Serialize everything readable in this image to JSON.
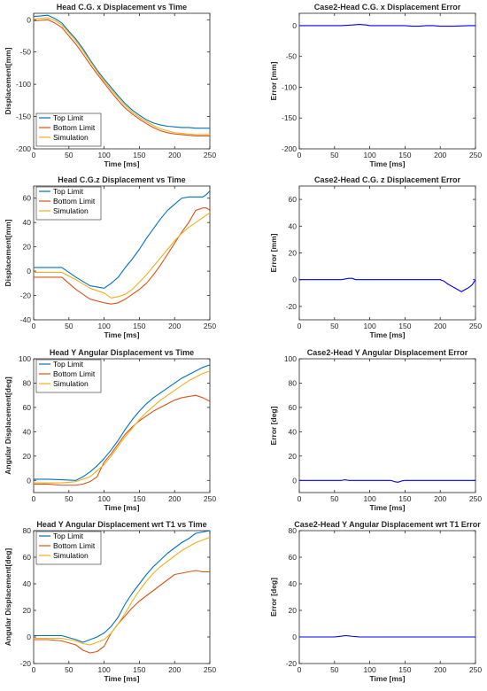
{
  "colors": {
    "top": "#0072BD",
    "bottom": "#D95319",
    "sim": "#EDB120",
    "error": "#0000FF"
  },
  "chart_data": [
    {
      "type": "line",
      "title": "Head C.G. x Displacement vs Time",
      "xlabel": "Time [ms]",
      "ylabel": "Displacement[mm]",
      "xlim": [
        0,
        250
      ],
      "ylim": [
        -200,
        10
      ],
      "xticks": [
        0,
        50,
        100,
        150,
        200,
        250
      ],
      "yticks": [
        -200,
        -150,
        -100,
        -50,
        0
      ],
      "legend": "bottom-left",
      "grid": false,
      "series": [
        {
          "name": "Top Limit",
          "color_key": "top",
          "x": [
            0,
            10,
            20,
            30,
            40,
            50,
            60,
            70,
            80,
            90,
            100,
            110,
            120,
            130,
            140,
            150,
            160,
            170,
            180,
            190,
            200,
            210,
            220,
            230,
            240,
            250
          ],
          "y": [
            5,
            6,
            7,
            2,
            -5,
            -18,
            -30,
            -45,
            -62,
            -78,
            -92,
            -105,
            -118,
            -130,
            -140,
            -148,
            -155,
            -160,
            -163,
            -165,
            -166,
            -167,
            -167,
            -168,
            -168,
            -168
          ]
        },
        {
          "name": "Bottom Limit",
          "color_key": "bottom",
          "x": [
            0,
            10,
            20,
            30,
            40,
            50,
            60,
            70,
            80,
            90,
            100,
            110,
            120,
            130,
            140,
            150,
            160,
            170,
            180,
            190,
            200,
            210,
            220,
            230,
            240,
            250
          ],
          "y": [
            -2,
            -1,
            0,
            -5,
            -12,
            -25,
            -38,
            -53,
            -69,
            -84,
            -98,
            -112,
            -125,
            -137,
            -146,
            -154,
            -161,
            -167,
            -172,
            -175,
            -177,
            -178,
            -179,
            -180,
            -180,
            -180
          ]
        },
        {
          "name": "Simulation",
          "color_key": "sim",
          "x": [
            0,
            10,
            20,
            30,
            40,
            50,
            60,
            70,
            80,
            90,
            100,
            110,
            120,
            130,
            140,
            150,
            160,
            170,
            180,
            190,
            200,
            210,
            220,
            230,
            240,
            250
          ],
          "y": [
            1,
            2,
            3,
            -1,
            -8,
            -20,
            -33,
            -48,
            -64,
            -80,
            -95,
            -108,
            -121,
            -133,
            -143,
            -151,
            -158,
            -164,
            -169,
            -172,
            -175,
            -176,
            -177,
            -178,
            -178,
            -178
          ]
        }
      ]
    },
    {
      "type": "line",
      "title": "Case2-Head C.G. x Displacement Error",
      "xlabel": "Time [ms]",
      "ylabel": "Error [mm]",
      "xlim": [
        0,
        250
      ],
      "ylim": [
        -200,
        20
      ],
      "xticks": [
        0,
        50,
        100,
        150,
        200,
        250
      ],
      "yticks": [
        -200,
        -150,
        -100,
        -50,
        0
      ],
      "legend": "none",
      "grid": false,
      "series": [
        {
          "color_key": "error",
          "x": [
            0,
            60,
            75,
            85,
            95,
            100,
            150,
            160,
            170,
            180,
            190,
            200,
            210,
            220,
            240,
            250
          ],
          "y": [
            0,
            0,
            1,
            2,
            1,
            0,
            0,
            -1,
            -1,
            0,
            0,
            -1,
            -1,
            -1,
            0,
            0
          ]
        }
      ]
    },
    {
      "type": "line",
      "title": "Head C.G.z Displacement vs Time",
      "xlabel": "Time [ms]",
      "ylabel": "Displacement[mm]",
      "xlim": [
        0,
        250
      ],
      "ylim": [
        -40,
        70
      ],
      "xticks": [
        0,
        50,
        100,
        150,
        200,
        250
      ],
      "yticks": [
        -40,
        -20,
        0,
        20,
        40,
        60
      ],
      "legend": "top-left",
      "grid": false,
      "series": [
        {
          "name": "Top Limit",
          "color_key": "top",
          "x": [
            0,
            20,
            40,
            60,
            80,
            100,
            110,
            120,
            130,
            140,
            150,
            160,
            170,
            180,
            190,
            200,
            210,
            220,
            230,
            240,
            245,
            250
          ],
          "y": [
            3,
            3,
            3,
            -5,
            -12,
            -14,
            -10,
            -5,
            3,
            10,
            18,
            27,
            35,
            43,
            50,
            55,
            60,
            61,
            61,
            61,
            63,
            66
          ]
        },
        {
          "name": "Bottom Limit",
          "color_key": "bottom",
          "x": [
            0,
            20,
            40,
            60,
            80,
            100,
            110,
            120,
            130,
            140,
            150,
            160,
            170,
            180,
            190,
            200,
            210,
            220,
            230,
            240,
            245,
            250
          ],
          "y": [
            -5,
            -5,
            -5,
            -15,
            -23,
            -26,
            -27,
            -26,
            -23,
            -19,
            -15,
            -10,
            -3,
            5,
            14,
            23,
            32,
            40,
            50,
            52,
            52,
            50
          ]
        },
        {
          "name": "Simulation",
          "color_key": "sim",
          "x": [
            0,
            20,
            40,
            60,
            80,
            100,
            110,
            120,
            130,
            140,
            150,
            160,
            170,
            180,
            190,
            200,
            210,
            220,
            230,
            240,
            245,
            250
          ],
          "y": [
            -1,
            -1,
            -1,
            -7,
            -14,
            -18,
            -22,
            -21,
            -19,
            -15,
            -9,
            -3,
            4,
            11,
            18,
            25,
            31,
            36,
            40,
            44,
            46,
            48
          ]
        }
      ]
    },
    {
      "type": "line",
      "title": "Case2-Head C.G. z Displacement Error",
      "xlabel": "Time [ms]",
      "ylabel": "Error [mm]",
      "xlim": [
        0,
        250
      ],
      "ylim": [
        -30,
        70
      ],
      "xticks": [
        0,
        50,
        100,
        150,
        200,
        250
      ],
      "yticks": [
        -20,
        0,
        20,
        40,
        60
      ],
      "legend": "none",
      "grid": false,
      "series": [
        {
          "color_key": "error",
          "x": [
            0,
            60,
            70,
            75,
            80,
            200,
            205,
            210,
            220,
            230,
            240,
            245,
            250
          ],
          "y": [
            0,
            0,
            1,
            1,
            0,
            0,
            -1,
            -3,
            -6,
            -9,
            -6,
            -4,
            0
          ]
        }
      ]
    },
    {
      "type": "line",
      "title": "Head Y Angular Displacement vs Time",
      "xlabel": "Time [ms]",
      "ylabel": "Angular Displacement[deg]",
      "xlim": [
        0,
        250
      ],
      "ylim": [
        -10,
        100
      ],
      "xticks": [
        0,
        50,
        100,
        150,
        200,
        250
      ],
      "yticks": [
        0,
        20,
        40,
        60,
        80,
        100
      ],
      "legend": "top-left",
      "grid": false,
      "series": [
        {
          "name": "Top Limit",
          "color_key": "top",
          "x": [
            0,
            20,
            40,
            60,
            70,
            80,
            90,
            100,
            110,
            120,
            130,
            140,
            150,
            160,
            170,
            180,
            190,
            200,
            210,
            220,
            230,
            240,
            250
          ],
          "y": [
            1,
            1,
            0.5,
            0,
            3,
            7,
            12,
            18,
            25,
            33,
            42,
            50,
            57,
            63,
            68,
            72,
            76,
            80,
            84,
            87,
            90,
            93,
            95
          ]
        },
        {
          "name": "Bottom Limit",
          "color_key": "bottom",
          "x": [
            0,
            20,
            40,
            60,
            70,
            80,
            90,
            100,
            110,
            120,
            130,
            140,
            150,
            160,
            170,
            180,
            190,
            200,
            210,
            220,
            230,
            240,
            250
          ],
          "y": [
            -3,
            -3,
            -4,
            -4,
            -3,
            -1,
            3,
            15,
            22,
            30,
            38,
            44,
            49,
            53,
            57,
            60,
            63,
            66,
            68,
            69,
            70,
            68,
            65
          ]
        },
        {
          "name": "Simulation",
          "color_key": "sim",
          "x": [
            0,
            20,
            40,
            60,
            70,
            80,
            90,
            100,
            110,
            120,
            130,
            140,
            150,
            160,
            170,
            180,
            190,
            200,
            210,
            220,
            230,
            240,
            250
          ],
          "y": [
            -2,
            -2,
            -2,
            -1,
            1,
            3,
            8,
            13,
            20,
            28,
            36,
            43,
            50,
            56,
            61,
            66,
            70,
            74,
            78,
            82,
            85,
            88,
            90
          ]
        }
      ]
    },
    {
      "type": "line",
      "title": "Case2-Head Y Angular Displacement Error",
      "xlabel": "Time [ms]",
      "ylabel": "Error [deg]",
      "xlim": [
        0,
        250
      ],
      "ylim": [
        -10,
        100
      ],
      "xticks": [
        0,
        50,
        100,
        150,
        200,
        250
      ],
      "yticks": [
        0,
        20,
        40,
        60,
        80,
        100
      ],
      "legend": "none",
      "grid": false,
      "series": [
        {
          "color_key": "error",
          "x": [
            0,
            60,
            65,
            70,
            130,
            135,
            140,
            145,
            150,
            250
          ],
          "y": [
            0,
            0,
            0.5,
            0,
            0,
            -1,
            -1.5,
            -0.5,
            0,
            0
          ]
        }
      ]
    },
    {
      "type": "line",
      "title": "Head Y Angular Displacement wrt T1 vs Time",
      "xlabel": "Time [ms]",
      "ylabel": "Angular Displacement[deg]",
      "xlim": [
        0,
        250
      ],
      "ylim": [
        -20,
        80
      ],
      "xticks": [
        0,
        50,
        100,
        150,
        200,
        250
      ],
      "yticks": [
        -20,
        0,
        20,
        40,
        60,
        80
      ],
      "legend": "top-left",
      "grid": false,
      "series": [
        {
          "name": "Top Limit",
          "color_key": "top",
          "x": [
            0,
            20,
            40,
            60,
            70,
            80,
            90,
            100,
            110,
            120,
            130,
            140,
            150,
            160,
            170,
            180,
            190,
            200,
            210,
            220,
            230,
            240,
            250
          ],
          "y": [
            1,
            1,
            1,
            -2,
            -4,
            -2,
            0,
            3,
            8,
            15,
            25,
            33,
            40,
            47,
            53,
            58,
            63,
            67,
            71,
            74,
            78,
            79,
            80
          ]
        },
        {
          "name": "Bottom Limit",
          "color_key": "bottom",
          "x": [
            0,
            20,
            40,
            60,
            70,
            80,
            90,
            100,
            110,
            120,
            130,
            140,
            150,
            160,
            170,
            180,
            190,
            200,
            210,
            220,
            230,
            240,
            250
          ],
          "y": [
            -2,
            -2,
            -3,
            -6,
            -10,
            -12,
            -11,
            -7,
            3,
            10,
            16,
            22,
            27,
            31,
            35,
            39,
            43,
            47,
            48,
            49,
            50,
            49,
            49
          ]
        },
        {
          "name": "Simulation",
          "color_key": "sim",
          "x": [
            0,
            20,
            40,
            60,
            70,
            80,
            90,
            100,
            110,
            120,
            130,
            140,
            150,
            160,
            170,
            180,
            190,
            200,
            210,
            220,
            230,
            240,
            250
          ],
          "y": [
            -1,
            -1,
            -1,
            -3,
            -5,
            -6,
            -4,
            -2,
            3,
            10,
            18,
            27,
            35,
            42,
            48,
            53,
            57,
            61,
            65,
            68,
            71,
            73,
            75
          ]
        }
      ]
    },
    {
      "type": "line",
      "title": "Case2-Head Y Angular Displacement wrt T1 Error",
      "xlabel": "Time [ms]",
      "ylabel": "Error [deg]",
      "xlim": [
        0,
        250
      ],
      "ylim": [
        -20,
        80
      ],
      "xticks": [
        0,
        50,
        100,
        150,
        200,
        250
      ],
      "yticks": [
        -20,
        0,
        20,
        40,
        60,
        80
      ],
      "legend": "none",
      "grid": false,
      "series": [
        {
          "color_key": "error",
          "x": [
            0,
            50,
            55,
            60,
            65,
            70,
            75,
            80,
            85,
            250
          ],
          "y": [
            0,
            0,
            0.3,
            0.6,
            1,
            0.8,
            0.5,
            0.3,
            0,
            0
          ]
        }
      ]
    }
  ]
}
